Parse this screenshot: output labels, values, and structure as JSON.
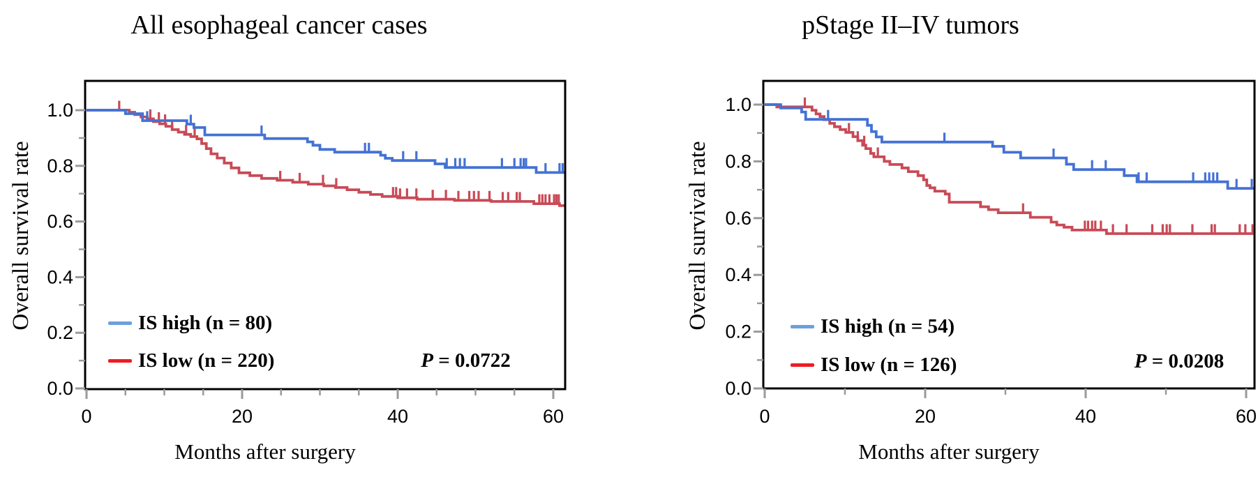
{
  "figure": {
    "background": "#ffffff"
  },
  "charts": [
    {
      "title": "All esophageal cancer cases",
      "y_axis_label": "Overall survival rate",
      "x_axis_label": "Months after surgery",
      "legend": {
        "items": [
          {
            "label": "IS high (n = 80)",
            "swatch_color": "#6ca0dc"
          },
          {
            "label": "IS low (n = 220)",
            "swatch_color": "#ee1c25"
          }
        ]
      },
      "p_label": {
        "symbol": "P",
        "rest": " = 0.0722"
      },
      "chart_data": {
        "type": "line",
        "subtype": "kaplan-meier-step",
        "title": "All esophageal cancer cases",
        "xlabel": "Months after surgery",
        "ylabel": "Overall survival rate",
        "xlim": [
          0,
          61.6
        ],
        "ylim": [
          0,
          1.1
        ],
        "xticks": [
          0,
          20,
          40,
          60
        ],
        "x_minor_step": 5,
        "yticks": [
          0.0,
          0.2,
          0.4,
          0.6,
          0.8,
          1.0
        ],
        "y_minor_step": 0.1,
        "grid": false,
        "legend_position": "lower-left-inside",
        "p_value": "P = 0.0722",
        "series": [
          {
            "name": "IS high (n = 80)",
            "color": "#4472d4",
            "steps": [
              [
                0,
                1.0
              ],
              [
                5,
                0.9875
              ],
              [
                7.2,
                0.9625
              ],
              [
                12.9,
                0.95
              ],
              [
                13.8,
                0.9375
              ],
              [
                15.2,
                0.911
              ],
              [
                22.9,
                0.898
              ],
              [
                28.4,
                0.886
              ],
              [
                29.1,
                0.874
              ],
              [
                30,
                0.859
              ],
              [
                31.9,
                0.849
              ],
              [
                37.8,
                0.838
              ],
              [
                38.4,
                0.827
              ],
              [
                39.3,
                0.819
              ],
              [
                44.8,
                0.807
              ],
              [
                46.1,
                0.794
              ],
              [
                57.8,
                0.776
              ]
            ],
            "censor_marks": [
              7.8,
              13.4,
              22.5,
              35.8,
              36.3,
              40.7,
              42.4,
              46.3,
              47.4,
              48.0,
              48.6,
              53.4,
              55.0,
              55.8,
              56.2,
              56.5,
              59.0,
              60.8,
              61.2
            ]
          },
          {
            "name": "IS low (n = 220)",
            "color": "#c84a56",
            "steps": [
              [
                0,
                1.0
              ],
              [
                5.5,
                0.9925
              ],
              [
                6.2,
                0.984
              ],
              [
                7.0,
                0.976
              ],
              [
                7.8,
                0.969
              ],
              [
                8.6,
                0.959
              ],
              [
                9.4,
                0.951
              ],
              [
                10.2,
                0.942
              ],
              [
                11.0,
                0.93
              ],
              [
                11.8,
                0.921
              ],
              [
                12.6,
                0.913
              ],
              [
                13.4,
                0.905
              ],
              [
                14.2,
                0.897
              ],
              [
                14.8,
                0.88
              ],
              [
                15.4,
                0.862
              ],
              [
                16.0,
                0.843
              ],
              [
                16.8,
                0.828
              ],
              [
                17.7,
                0.81
              ],
              [
                18.6,
                0.7925
              ],
              [
                19.6,
                0.775
              ],
              [
                21.0,
                0.765
              ],
              [
                22.5,
                0.755
              ],
              [
                24.5,
                0.748
              ],
              [
                26.5,
                0.741
              ],
              [
                28.5,
                0.734
              ],
              [
                30.5,
                0.728
              ],
              [
                32.0,
                0.722
              ],
              [
                33.5,
                0.714
              ],
              [
                35.0,
                0.705
              ],
              [
                36.5,
                0.697
              ],
              [
                38.0,
                0.69
              ],
              [
                40.0,
                0.685
              ],
              [
                42.5,
                0.68
              ],
              [
                47.3,
                0.676
              ],
              [
                52.0,
                0.672
              ],
              [
                57.5,
                0.664
              ],
              [
                60.8,
                0.657
              ]
            ],
            "censor_marks": [
              4.2,
              8.2,
              9.3,
              10.1,
              11.0,
              12.8,
              13.9,
              24.9,
              27.4,
              30.4,
              32.1,
              39.4,
              39.8,
              40.3,
              41.2,
              42.4,
              44.5,
              46.2,
              47.8,
              49.2,
              49.8,
              50.4,
              51.8,
              53.5,
              54.2,
              55.3,
              55.7,
              58.2,
              58.6,
              59.0,
              59.5,
              60.1,
              60.4,
              60.7
            ]
          }
        ]
      }
    },
    {
      "title": "pStage II–IV tumors",
      "y_axis_label": "Overall survival rate",
      "x_axis_label": "Months after surgery",
      "legend": {
        "items": [
          {
            "label": "IS high (n = 54)",
            "swatch_color": "#6ca0dc"
          },
          {
            "label": "IS low (n = 126)",
            "swatch_color": "#ee1c25"
          }
        ]
      },
      "p_label": {
        "symbol": "P",
        "rest": " = 0.0208"
      },
      "chart_data": {
        "type": "line",
        "subtype": "kaplan-meier-step",
        "title": "pStage II–IV tumors",
        "xlabel": "Months after surgery",
        "ylabel": "Overall survival rate",
        "xlim": [
          0,
          61.0
        ],
        "ylim": [
          0,
          1.1
        ],
        "xticks": [
          0,
          20,
          40,
          60
        ],
        "x_minor_step": 10,
        "yticks": [
          0.0,
          0.2,
          0.4,
          0.6,
          0.8,
          1.0
        ],
        "y_minor_step": 0.1,
        "grid": false,
        "legend_position": "lower-left-inside",
        "p_value": "P = 0.0208",
        "series": [
          {
            "name": "IS high (n = 54)",
            "color": "#4472d4",
            "steps": [
              [
                0,
                1.0
              ],
              [
                2.0,
                0.988
              ],
              [
                4.6,
                0.974
              ],
              [
                5.1,
                0.948
              ],
              [
                12.8,
                0.927
              ],
              [
                13.3,
                0.905
              ],
              [
                13.9,
                0.886
              ],
              [
                14.6,
                0.868
              ],
              [
                28.4,
                0.853
              ],
              [
                29.8,
                0.832
              ],
              [
                31.9,
                0.812
              ],
              [
                37.6,
                0.79
              ],
              [
                38.5,
                0.771
              ],
              [
                44.8,
                0.75
              ],
              [
                46.4,
                0.728
              ],
              [
                57.7,
                0.705
              ]
            ],
            "censor_marks": [
              7.9,
              22.4,
              36.0,
              40.8,
              42.5,
              46.6,
              47.6,
              53.4,
              54.9,
              55.4,
              55.9,
              56.4,
              58.8,
              60.7
            ]
          },
          {
            "name": "IS low (n = 126)",
            "color": "#c84a56",
            "steps": [
              [
                0,
                1.0
              ],
              [
                1.5,
                0.992
              ],
              [
                5.9,
                0.98
              ],
              [
                6.4,
                0.967
              ],
              [
                6.9,
                0.958
              ],
              [
                7.4,
                0.947
              ],
              [
                8.1,
                0.934
              ],
              [
                8.7,
                0.922
              ],
              [
                9.4,
                0.912
              ],
              [
                10.1,
                0.902
              ],
              [
                11.0,
                0.887
              ],
              [
                11.6,
                0.873
              ],
              [
                12.2,
                0.857
              ],
              [
                12.6,
                0.845
              ],
              [
                13.2,
                0.828
              ],
              [
                13.6,
                0.816
              ],
              [
                14.9,
                0.8
              ],
              [
                15.6,
                0.789
              ],
              [
                17.1,
                0.777
              ],
              [
                17.9,
                0.764
              ],
              [
                19.1,
                0.75
              ],
              [
                19.8,
                0.735
              ],
              [
                20.2,
                0.715
              ],
              [
                20.6,
                0.707
              ],
              [
                21.2,
                0.695
              ],
              [
                22.5,
                0.685
              ],
              [
                23.0,
                0.656
              ],
              [
                26.9,
                0.64
              ],
              [
                27.9,
                0.63
              ],
              [
                29.1,
                0.619
              ],
              [
                33.1,
                0.603
              ],
              [
                35.7,
                0.586
              ],
              [
                36.4,
                0.576
              ],
              [
                37.3,
                0.568
              ],
              [
                38.3,
                0.558
              ],
              [
                42.6,
                0.5455
              ]
            ],
            "censor_marks": [
              5.0,
              10.5,
              11.6,
              12.4,
              14.1,
              32.2,
              39.9,
              40.3,
              40.8,
              41.2,
              41.9,
              43.4,
              45.1,
              48.3,
              49.6,
              50.1,
              50.5,
              53.3,
              55.7,
              56.1,
              59.2,
              59.9,
              60.8
            ]
          }
        ]
      }
    }
  ]
}
